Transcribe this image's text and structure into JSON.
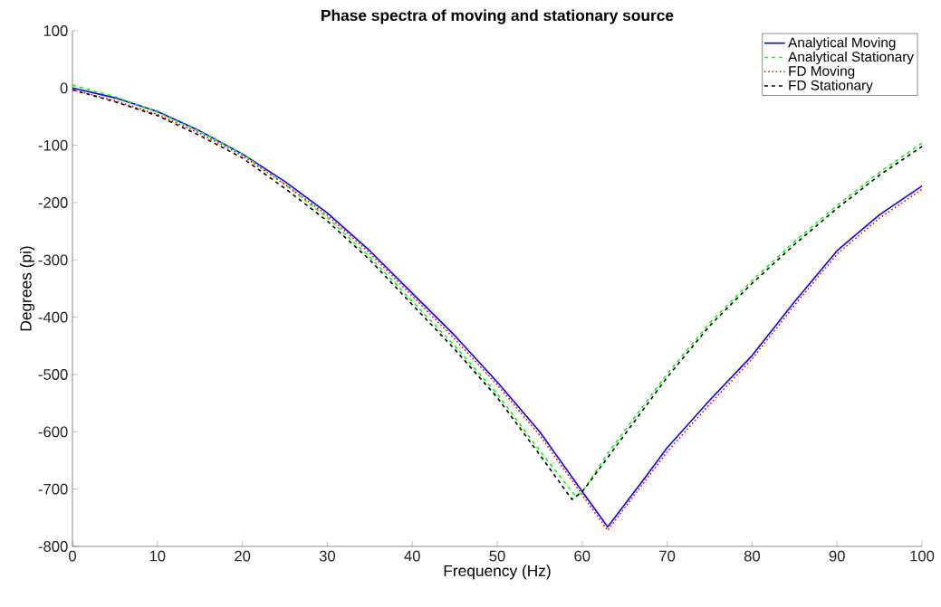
{
  "chart_data": {
    "type": "line",
    "title": "Phase spectra of moving and stationary source",
    "xlabel": "Frequency (Hz)",
    "ylabel": "Degrees (pi)",
    "xlim": [
      0,
      100
    ],
    "ylim": [
      -800,
      100
    ],
    "xticks": [
      0,
      10,
      20,
      30,
      40,
      50,
      60,
      70,
      80,
      90,
      100
    ],
    "yticks": [
      -800,
      -700,
      -600,
      -500,
      -400,
      -300,
      -200,
      -100,
      0,
      100
    ],
    "grid": false,
    "legend": "top right",
    "series": [
      {
        "name": "Analytical Moving",
        "color": "#0000ff",
        "line_style": "solid",
        "x": [
          0,
          5,
          10,
          15,
          20,
          25,
          30,
          35,
          40,
          45,
          50,
          55,
          60,
          63,
          67.2,
          70,
          75,
          80,
          85,
          90,
          95,
          100
        ],
        "values": [
          0,
          -17,
          -41,
          -75,
          -115,
          -163,
          -218,
          -284,
          -358,
          -432,
          -513,
          -600,
          -704,
          -766,
          -684,
          -628,
          -545,
          -467,
          -373,
          -284,
          -221,
          -171
        ]
      },
      {
        "name": "Analytical Stationary",
        "color": "#00ff00",
        "line_style": "dashed",
        "x": [
          0,
          5,
          10,
          15,
          20,
          25,
          30,
          35,
          40,
          45,
          50,
          55,
          59.2,
          60,
          63,
          70,
          75,
          80,
          85,
          90,
          95,
          100
        ],
        "values": [
          5,
          -15,
          -42,
          -76,
          -115,
          -168,
          -226,
          -295,
          -372,
          -450,
          -534,
          -633,
          -712,
          -705,
          -638,
          -499,
          -410,
          -336,
          -268,
          -205,
          -147,
          -96
        ]
      },
      {
        "name": "FD Moving",
        "color": "#ff0000",
        "line_style": "dotted",
        "x": [
          0,
          5,
          10,
          15,
          20,
          25,
          30,
          35,
          40,
          45,
          50,
          55,
          60,
          63,
          70,
          75,
          80,
          85,
          90,
          95,
          100
        ],
        "values": [
          -3,
          -22,
          -46,
          -79,
          -118,
          -168,
          -222,
          -288,
          -363,
          -438,
          -518,
          -606,
          -710,
          -772,
          -635,
          -552,
          -473,
          -379,
          -290,
          -227,
          -177
        ]
      },
      {
        "name": "FD Stationary",
        "color": "#000000",
        "line_style": "dashed",
        "x": [
          0,
          5,
          10,
          15,
          20,
          25,
          30,
          35,
          40,
          45,
          50,
          55,
          58.8,
          60,
          63,
          70,
          75,
          80,
          85,
          90,
          95,
          100
        ],
        "values": [
          -3,
          -24,
          -48,
          -83,
          -122,
          -175,
          -232,
          -300,
          -378,
          -456,
          -540,
          -640,
          -718,
          -705,
          -645,
          -505,
          -415,
          -341,
          -273,
          -210,
          -152,
          -102
        ]
      }
    ]
  }
}
